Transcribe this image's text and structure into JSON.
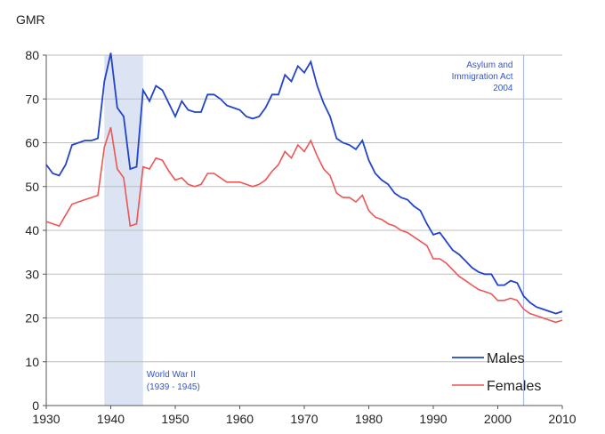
{
  "chart_data": {
    "type": "line",
    "ylabel": "GMR",
    "xlim": [
      1930,
      2010
    ],
    "ylim": [
      0,
      80
    ],
    "x_ticks": [
      "1930",
      "1940",
      "1950",
      "1960",
      "1970",
      "1980",
      "1990",
      "2000",
      "2010"
    ],
    "y_ticks": [
      "0",
      "10",
      "20",
      "30",
      "40",
      "50",
      "60",
      "70",
      "80"
    ],
    "grid": "horizontal",
    "legend_position": "bottom-right",
    "shaded_region": {
      "x_start": 1939,
      "x_end": 1945,
      "label_lines": [
        "World War II",
        "(1939 - 1945)"
      ]
    },
    "reference_line": {
      "x": 2004,
      "label_lines": [
        "Asylum and",
        "Immigration Act",
        "2004"
      ]
    },
    "colors": {
      "males": "#2244cc",
      "females": "#ee5555",
      "shade": "#dce3f3",
      "grid": "#bdbdbd",
      "annotation": "#3355cc"
    },
    "series": [
      {
        "name": "Males",
        "x": [
          1930,
          1931,
          1932,
          1933,
          1934,
          1935,
          1936,
          1937,
          1938,
          1939,
          1940,
          1941,
          1942,
          1943,
          1944,
          1945,
          1946,
          1947,
          1948,
          1949,
          1950,
          1951,
          1952,
          1953,
          1954,
          1955,
          1956,
          1957,
          1958,
          1959,
          1960,
          1961,
          1962,
          1963,
          1964,
          1965,
          1966,
          1967,
          1968,
          1969,
          1970,
          1971,
          1972,
          1973,
          1974,
          1975,
          1976,
          1977,
          1978,
          1979,
          1980,
          1981,
          1982,
          1983,
          1984,
          1985,
          1986,
          1987,
          1988,
          1989,
          1990,
          1991,
          1992,
          1993,
          1994,
          1995,
          1996,
          1997,
          1998,
          1999,
          2000,
          2001,
          2002,
          2003,
          2004,
          2005,
          2006,
          2007,
          2008,
          2009,
          2010
        ],
        "values": [
          55,
          53,
          52.5,
          55,
          59.5,
          60,
          60.5,
          60.5,
          61,
          74,
          80.5,
          68,
          66,
          54,
          54.5,
          72,
          69.5,
          73,
          72,
          69,
          66,
          69.5,
          67.5,
          67,
          67,
          71,
          71,
          70,
          68.5,
          68,
          67.5,
          66,
          65.5,
          66,
          68,
          71,
          71,
          75.5,
          74,
          77.5,
          76,
          78.5,
          73,
          69,
          66,
          61,
          60,
          59.5,
          58.5,
          60.5,
          56,
          53,
          51.5,
          50.5,
          48.5,
          47.5,
          47,
          45.5,
          44.5,
          41.5,
          39,
          39.5,
          37.5,
          35.5,
          34.5,
          33,
          31.5,
          30.5,
          30,
          30,
          27.5,
          27.5,
          28.5,
          28,
          25,
          23.5,
          22.5,
          22,
          21.5,
          21,
          21.5
        ]
      },
      {
        "name": "Females",
        "x": [
          1930,
          1931,
          1932,
          1933,
          1934,
          1935,
          1936,
          1937,
          1938,
          1939,
          1940,
          1941,
          1942,
          1943,
          1944,
          1945,
          1946,
          1947,
          1948,
          1949,
          1950,
          1951,
          1952,
          1953,
          1954,
          1955,
          1956,
          1957,
          1958,
          1959,
          1960,
          1961,
          1962,
          1963,
          1964,
          1965,
          1966,
          1967,
          1968,
          1969,
          1970,
          1971,
          1972,
          1973,
          1974,
          1975,
          1976,
          1977,
          1978,
          1979,
          1980,
          1981,
          1982,
          1983,
          1984,
          1985,
          1986,
          1987,
          1988,
          1989,
          1990,
          1991,
          1992,
          1993,
          1994,
          1995,
          1996,
          1997,
          1998,
          1999,
          2000,
          2001,
          2002,
          2003,
          2004,
          2005,
          2006,
          2007,
          2008,
          2009,
          2010
        ],
        "values": [
          42,
          41.5,
          41,
          43.5,
          46,
          46.5,
          47,
          47.5,
          48,
          59,
          63.5,
          54,
          52,
          41,
          41.5,
          54.5,
          54,
          56.5,
          56,
          53.5,
          51.5,
          52,
          50.5,
          50,
          50.5,
          53,
          53,
          52,
          51,
          51,
          51,
          50.5,
          50,
          50.5,
          51.5,
          53.5,
          55,
          58,
          56.5,
          59.5,
          58,
          60.5,
          57,
          54,
          52.5,
          48.5,
          47.5,
          47.5,
          46.5,
          48,
          44.5,
          43,
          42.5,
          41.5,
          41,
          40,
          39.5,
          38.5,
          37.5,
          36.5,
          33.5,
          33.5,
          32.5,
          31,
          29.5,
          28.5,
          27.5,
          26.5,
          26,
          25.5,
          24,
          24,
          24.5,
          24,
          22,
          21,
          20.5,
          20,
          19.5,
          19,
          19.5
        ]
      }
    ]
  }
}
